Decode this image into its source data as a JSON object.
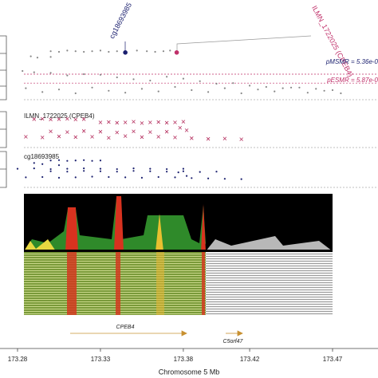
{
  "chart_data": [
    {
      "type": "scatter",
      "xlim": [
        173.27,
        173.485
      ],
      "ylim": [
        0,
        10
      ],
      "annotations": [
        "cg18693985",
        "ILMN_1722025 (CPEB4)",
        "pMSMR = 5.36e-0",
        "pESMR = 5.87e-0"
      ],
      "threshold_lines": [
        4.0,
        2.6
      ],
      "threshold_color": "#c0306a",
      "series": [
        {
          "color": "#888888",
          "marker": "dot",
          "x": [
            173.3,
            173.305,
            173.31,
            173.315,
            173.32,
            173.325,
            173.33,
            173.335,
            173.34,
            173.352,
            173.358,
            173.363,
            173.368,
            173.372,
            173.3,
            173.288,
            173.292,
            173.283,
            173.29,
            173.3,
            173.31,
            173.32,
            173.33,
            173.34,
            173.35,
            173.36,
            173.37,
            173.38,
            173.39,
            173.4,
            173.41,
            173.42,
            173.43,
            173.44,
            173.45,
            173.46,
            173.47,
            173.285,
            173.295,
            173.305,
            173.315,
            173.325,
            173.335,
            173.345,
            173.355,
            173.365,
            173.375,
            173.385,
            173.395,
            173.405,
            173.415,
            173.425,
            173.435,
            173.445,
            173.455,
            173.465,
            173.475
          ],
          "values": [
            7.6,
            7.5,
            7.7,
            7.6,
            7.5,
            7.6,
            7.7,
            7.5,
            7.6,
            7.7,
            7.6,
            7.5,
            7.6,
            7.7,
            6.7,
            6.8,
            6.6,
            4.5,
            4.3,
            4.2,
            3.8,
            4.0,
            3.9,
            3.5,
            3.2,
            3.0,
            3.6,
            3.3,
            2.9,
            2.5,
            2.6,
            2.2,
            2.0,
            1.8,
            1.9,
            1.7,
            1.5,
            1.8,
            1.2,
            1.6,
            1.0,
            1.9,
            1.4,
            1.1,
            1.7,
            1.3,
            2.0,
            1.5,
            1.2,
            1.8,
            1.0,
            1.6,
            1.3,
            1.9,
            1.1,
            1.4,
            1.0
          ]
        },
        {
          "color": "#1a1f6e",
          "marker": "big",
          "x": [
            173.345
          ],
          "values": [
            7.4
          ]
        },
        {
          "color": "#c0306a",
          "marker": "big",
          "x": [
            173.376
          ],
          "values": [
            7.4
          ]
        }
      ]
    },
    {
      "type": "scatter",
      "title": "ILMN_1722025 (CPEB4)",
      "xlim": [
        173.27,
        173.485
      ],
      "ylim": [
        0,
        10
      ],
      "series": [
        {
          "color": "#b5305f",
          "marker": "x",
          "x": [
            173.29,
            173.295,
            173.3,
            173.305,
            173.31,
            173.315,
            173.32,
            173.33,
            173.335,
            173.34,
            173.345,
            173.35,
            173.355,
            173.36,
            173.365,
            173.37,
            173.375,
            173.38,
            173.378,
            173.382,
            173.3,
            173.31,
            173.32,
            173.33,
            173.34,
            173.35,
            173.36,
            173.37,
            173.285,
            173.295,
            173.305,
            173.315,
            173.325,
            173.335,
            173.345,
            173.355,
            173.365,
            173.375,
            173.385,
            173.395,
            173.405,
            173.415
          ],
          "values": [
            7.9,
            8.0,
            7.8,
            7.9,
            8.0,
            7.8,
            7.9,
            7.0,
            7.1,
            6.9,
            7.0,
            7.2,
            6.8,
            7.0,
            7.1,
            6.9,
            7.0,
            7.2,
            5.5,
            4.8,
            4.5,
            4.3,
            4.6,
            4.4,
            4.2,
            4.5,
            4.3,
            4.4,
            3.0,
            2.8,
            3.1,
            2.9,
            3.0,
            2.7,
            3.2,
            2.9,
            3.0,
            2.8,
            2.6,
            2.4,
            2.5,
            2.3
          ]
        }
      ]
    },
    {
      "type": "scatter",
      "title": "cg18693985",
      "xlim": [
        173.27,
        173.485
      ],
      "ylim": [
        0,
        10
      ],
      "xticks": [
        173.28,
        173.33,
        173.38,
        173.42,
        173.47
      ],
      "xlabel": "Chromosome 5 Mb",
      "series": [
        {
          "color": "#1a1f6e",
          "marker": "dot",
          "x": [
            173.3,
            173.305,
            173.31,
            173.315,
            173.32,
            173.325,
            173.33,
            173.29,
            173.295,
            173.305,
            173.28,
            173.29,
            173.3,
            173.31,
            173.32,
            173.33,
            173.34,
            173.35,
            173.36,
            173.37,
            173.38,
            173.3,
            173.31,
            173.32,
            173.33,
            173.34,
            173.35,
            173.36,
            173.37,
            173.38,
            173.39,
            173.4,
            173.285,
            173.295,
            173.305,
            173.315,
            173.325,
            173.335,
            173.345,
            173.355,
            173.365,
            173.375,
            173.385,
            173.395,
            173.405,
            173.415,
            173.377,
            173.382
          ],
          "values": [
            7.5,
            7.6,
            7.4,
            7.5,
            7.6,
            7.4,
            7.5,
            6.8,
            6.5,
            6.2,
            5.2,
            5.3,
            5.1,
            5.2,
            5.3,
            5.2,
            5.1,
            5.3,
            5.2,
            5.1,
            5.2,
            4.5,
            4.4,
            4.6,
            4.5,
            4.4,
            4.6,
            4.5,
            4.4,
            4.5,
            4.3,
            4.4,
            2.8,
            2.9,
            2.7,
            2.8,
            3.0,
            2.9,
            2.8,
            2.7,
            2.9,
            2.8,
            2.6,
            2.5,
            2.4,
            2.3,
            4.2,
            3.2
          ]
        }
      ]
    }
  ],
  "genes": [
    "CPEB4",
    "C5orf47"
  ]
}
